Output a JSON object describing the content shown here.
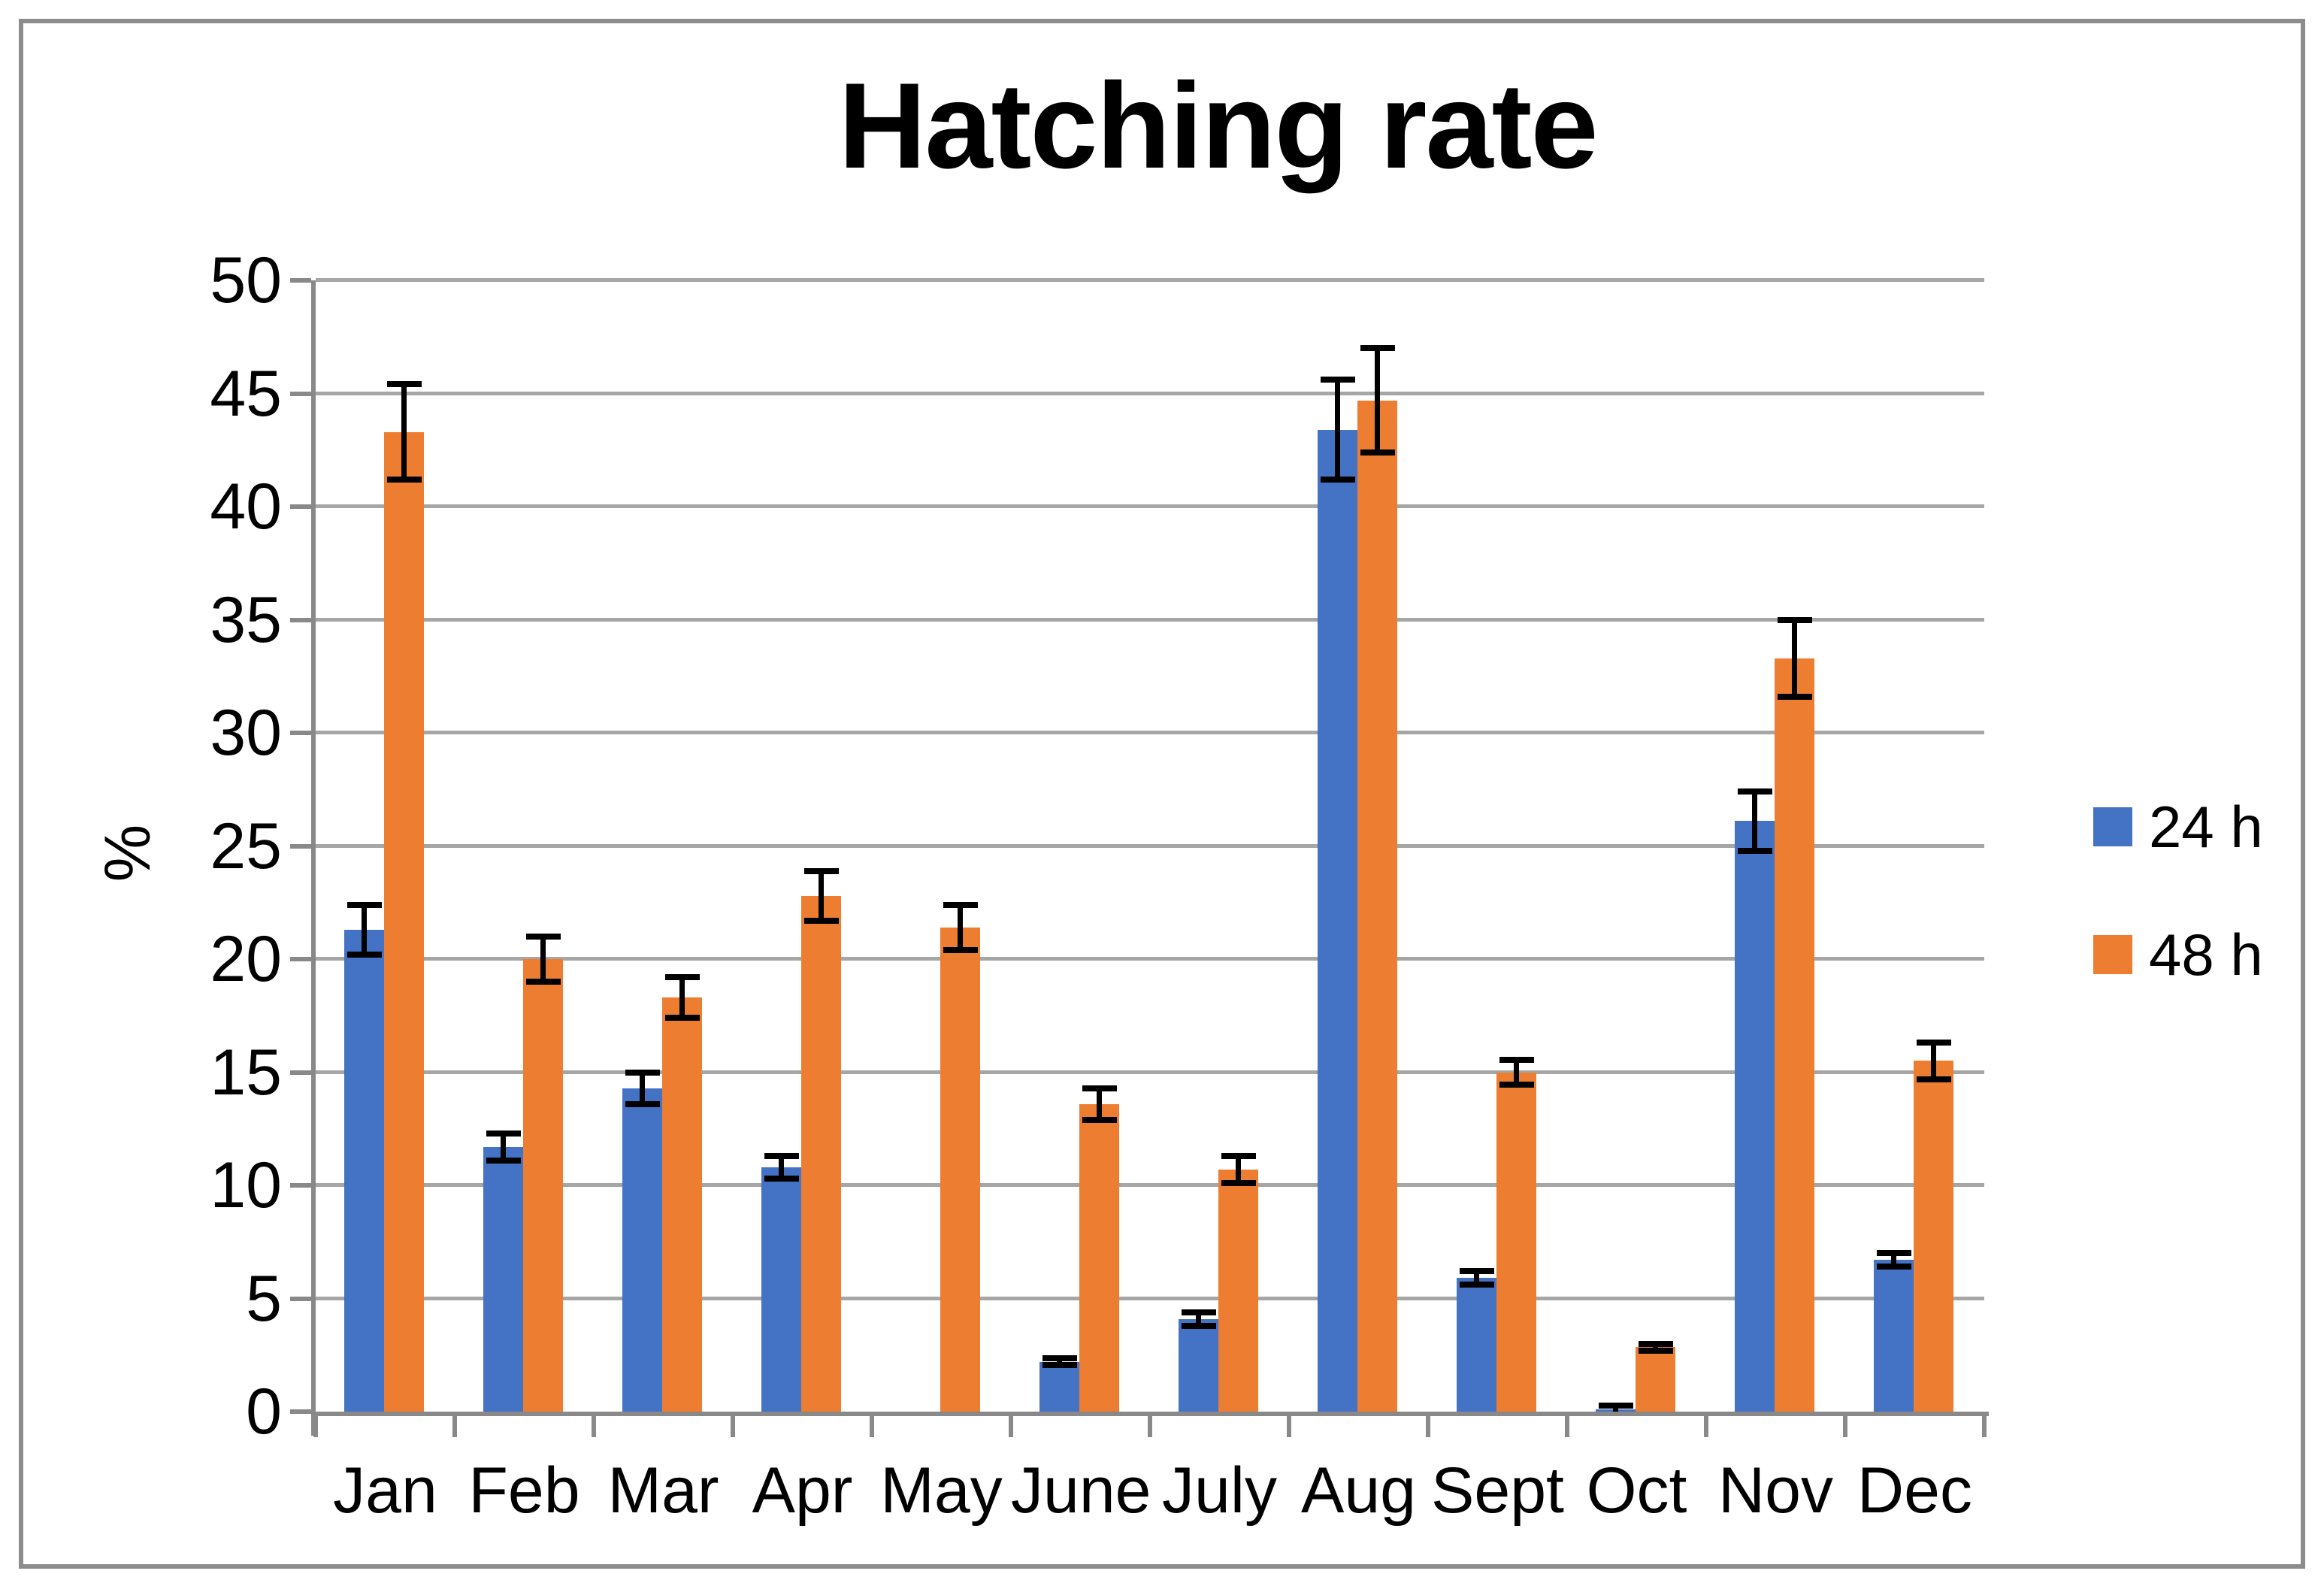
{
  "figure": {
    "title": "Hatching rate"
  },
  "chart_data": {
    "type": "bar",
    "title": "Hatching rate",
    "xlabel": "",
    "ylabel": "%",
    "ylim": [
      0,
      50
    ],
    "ytick_step": 5,
    "yticks": [
      0,
      5,
      10,
      15,
      20,
      25,
      30,
      35,
      40,
      45,
      50
    ],
    "grid": true,
    "legend_position": "right",
    "error_bars": true,
    "categories": [
      "Jan",
      "Feb",
      "Mar",
      "Apr",
      "May",
      "June",
      "July",
      "Aug",
      "Sept",
      "Oct",
      "Nov",
      "Dec"
    ],
    "series": [
      {
        "name": "24 h",
        "color": "#4472C4",
        "values": [
          21.3,
          11.7,
          14.3,
          10.8,
          0,
          2.2,
          4.1,
          43.4,
          5.9,
          0.1,
          26.1,
          6.7
        ],
        "errors": [
          1.1,
          0.6,
          0.7,
          0.5,
          0,
          0.15,
          0.3,
          2.2,
          0.3,
          0.15,
          1.3,
          0.3
        ]
      },
      {
        "name": "48 h",
        "color": "#ED7D31",
        "values": [
          43.3,
          20.0,
          18.3,
          22.8,
          21.4,
          13.6,
          10.7,
          44.7,
          15.0,
          2.85,
          33.3,
          15.5
        ],
        "errors": [
          2.1,
          1.0,
          0.9,
          1.1,
          1.0,
          0.7,
          0.6,
          2.3,
          0.55,
          0.15,
          1.7,
          0.8
        ]
      }
    ]
  },
  "colors": {
    "bar_blue": "#4472C4",
    "bar_orange": "#ED7D31",
    "gridline": "#a6a6a6",
    "axis": "#898989",
    "figure_border": "#8c8c8c",
    "text": "#000000",
    "background": "#ffffff"
  }
}
